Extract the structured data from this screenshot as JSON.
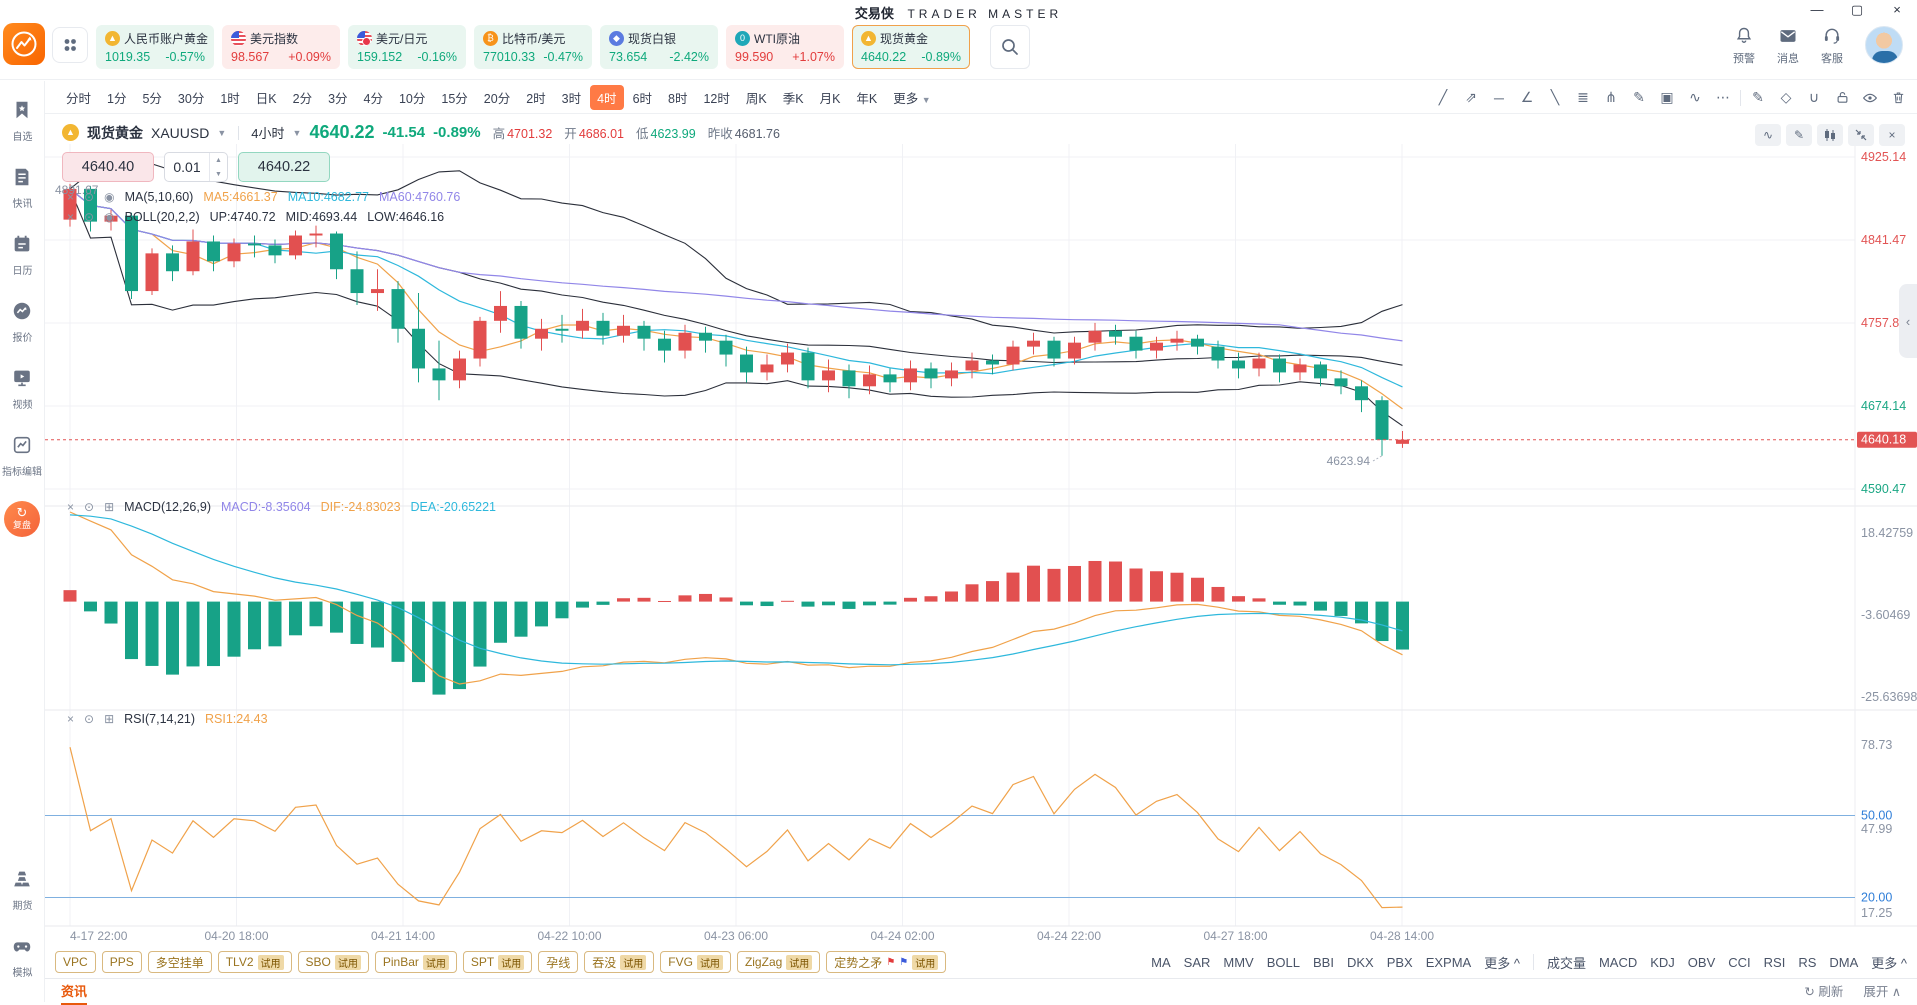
{
  "window": {
    "title_cn": "交易侠",
    "title_en": "TRADER MASTER",
    "controls": {
      "minimize": "—",
      "restore": "▢",
      "close": "×"
    }
  },
  "topbar": {
    "tickers": [
      {
        "name": "人民币账户黄金",
        "value": "1019.35",
        "change": "-0.57%",
        "trend": "down",
        "icon": "gold-coin-icon",
        "icon_bg": "#f2b632",
        "glyph": "▲",
        "selected": false
      },
      {
        "name": "美元指数",
        "value": "98.567",
        "change": "+0.09%",
        "trend": "up",
        "icon": "us-flag-icon",
        "icon_bg": "flag",
        "glyph": "",
        "selected": false
      },
      {
        "name": "美元/日元",
        "value": "159.152",
        "change": "-0.16%",
        "trend": "down",
        "icon": "usd-jpy-flag-icon",
        "icon_bg": "flag-jp",
        "glyph": "",
        "selected": false
      },
      {
        "name": "比特币/美元",
        "value": "77010.33",
        "change": "-0.47%",
        "trend": "down",
        "icon": "bitcoin-icon",
        "icon_bg": "#f7931a",
        "glyph": "₿",
        "selected": false
      },
      {
        "name": "现货白银",
        "value": "73.654",
        "change": "-2.42%",
        "trend": "down",
        "icon": "silver-icon",
        "icon_bg": "#5b7be0",
        "glyph": "◆",
        "selected": false
      },
      {
        "name": "WTI原油",
        "value": "99.590",
        "change": "+1.07%",
        "trend": "up",
        "icon": "oil-icon",
        "icon_bg": "#1fa7b8",
        "glyph": "0",
        "selected": false
      },
      {
        "name": "现货黄金",
        "value": "4640.22",
        "change": "-0.89%",
        "trend": "down",
        "icon": "gold-coin-icon",
        "icon_bg": "#f2b632",
        "glyph": "▲",
        "selected": true
      }
    ],
    "actions": [
      {
        "label": "预警",
        "icon": "bell-icon"
      },
      {
        "label": "消息",
        "icon": "mail-icon"
      },
      {
        "label": "客服",
        "icon": "headset-icon"
      }
    ]
  },
  "sidebar": {
    "items": [
      {
        "label": "自选",
        "icon": "bookmark-icon"
      },
      {
        "label": "快讯",
        "icon": "news-icon"
      },
      {
        "label": "日历",
        "icon": "calendar-icon"
      },
      {
        "label": "报价",
        "icon": "quotes-icon"
      },
      {
        "label": "视频",
        "icon": "video-icon"
      },
      {
        "label": "指标编辑",
        "icon": "indicator-edit-icon"
      }
    ],
    "replay": "复盘",
    "bottom_items": [
      {
        "label": "期货",
        "icon": "futures-icon"
      },
      {
        "label": "模拟",
        "icon": "simulate-icon"
      }
    ]
  },
  "timeframes": {
    "items": [
      "分时",
      "1分",
      "5分",
      "30分",
      "1时",
      "日K",
      "2分",
      "3分",
      "4分",
      "10分",
      "15分",
      "20分",
      "2时",
      "3时",
      "4时",
      "6时",
      "8时",
      "12时",
      "周K",
      "季K",
      "月K",
      "年K"
    ],
    "active": "4时",
    "more": "更多"
  },
  "draw_tools": [
    "trend-line-icon",
    "ray-icon",
    "horizontal-line-icon",
    "polyline-icon",
    "segment-icon",
    "fibonacci-icon",
    "fan-lines-icon",
    "brush-icon",
    "image-icon",
    "pattern-icon",
    "more-tools-icon",
    "note-icon",
    "eraser-icon",
    "magnet-icon",
    "lock-icon",
    "visibility-icon",
    "delete-icon"
  ],
  "chart": {
    "header": {
      "name": "现货黄金",
      "symbol": "XAUUSD",
      "interval": "4小时",
      "price": "4640.22",
      "change": "-41.54",
      "change_pct": "-0.89%",
      "high_label": "高",
      "high": "4701.32",
      "open_label": "开",
      "open": "4686.01",
      "low_label": "低",
      "low": "4623.99",
      "prev_label": "昨收",
      "prev_close": "4681.76"
    },
    "order": {
      "sell": "4640.40",
      "qty": "0.01",
      "buy": "4640.22"
    },
    "ma_legend": {
      "title": "MA(5,10,60)",
      "ma5": "MA5:4661.37",
      "ma10": "MA10:4682.77",
      "ma60": "MA60:4760.76"
    },
    "boll_legend": {
      "title": "BOLL(20,2,2)",
      "up": "UP:4740.72",
      "mid": "MID:4693.44",
      "low": "LOW:4646.16"
    },
    "macd_legend": {
      "title": "MACD(12,26,9)",
      "macd": "MACD:-8.35604",
      "dif": "DIF:-24.83023",
      "dea": "DEA:-20.65221"
    },
    "rsi_legend": {
      "title": "RSI(7,14,21)",
      "rsi1": "RSI1:24.43"
    },
    "high_marker": "4891.67",
    "low_marker": "4623.94",
    "current_price": "4640.18",
    "price_axis": [
      {
        "label": "4925.14",
        "color": "#e25454"
      },
      {
        "label": "4841.47",
        "color": "#e25454"
      },
      {
        "label": "4757.80",
        "color": "#e25454"
      },
      {
        "label": "4674.14",
        "color": "#1ba784"
      },
      {
        "label": "4590.47",
        "color": "#1ba784"
      }
    ],
    "macd_axis": [
      "18.42759",
      "-3.60469",
      "-25.63698"
    ],
    "rsi_axis_gray": [
      "78.73",
      "47.99",
      "17.25"
    ],
    "rsi_lines": [
      {
        "value": 50,
        "label": "50.00"
      },
      {
        "value": 20,
        "label": "20.00"
      }
    ]
  },
  "chart_data": {
    "type": "candlestick",
    "symbol": "XAUUSD",
    "interval": "4h",
    "x_labels": [
      "4-17 22:00",
      "04-20 18:00",
      "04-21 14:00",
      "04-22 10:00",
      "04-23 06:00",
      "04-24 02:00",
      "04-24 22:00",
      "04-27 18:00",
      "04-28 14:00"
    ],
    "price_range": [
      4590.47,
      4925.14
    ],
    "overlays": [
      "MA5",
      "MA10",
      "MA60",
      "BOLL(20,2)"
    ],
    "sub_panels": [
      "MACD(12,26,9)",
      "RSI(7)"
    ],
    "up_color": "#e25050",
    "down_color": "#17a287",
    "ohlc": [
      [
        4862,
        4898,
        4855,
        4893
      ],
      [
        4893,
        4896,
        4850,
        4860
      ],
      [
        4860,
        4872,
        4851,
        4866
      ],
      [
        4866,
        4869,
        4782,
        4790
      ],
      [
        4790,
        4833,
        4786,
        4828
      ],
      [
        4828,
        4836,
        4800,
        4810
      ],
      [
        4810,
        4852,
        4806,
        4840
      ],
      [
        4840,
        4846,
        4810,
        4820
      ],
      [
        4820,
        4843,
        4814,
        4838
      ],
      [
        4838,
        4846,
        4824,
        4836
      ],
      [
        4836,
        4842,
        4818,
        4826
      ],
      [
        4826,
        4851,
        4822,
        4846
      ],
      [
        4846,
        4856,
        4834,
        4848
      ],
      [
        4848,
        4850,
        4802,
        4812
      ],
      [
        4812,
        4830,
        4776,
        4788
      ],
      [
        4788,
        4812,
        4770,
        4792
      ],
      [
        4792,
        4800,
        4738,
        4752
      ],
      [
        4752,
        4788,
        4698,
        4712
      ],
      [
        4712,
        4740,
        4680,
        4700
      ],
      [
        4700,
        4730,
        4692,
        4722
      ],
      [
        4722,
        4764,
        4714,
        4760
      ],
      [
        4760,
        4790,
        4748,
        4775
      ],
      [
        4775,
        4780,
        4732,
        4742
      ],
      [
        4742,
        4762,
        4730,
        4752
      ],
      [
        4752,
        4766,
        4738,
        4750
      ],
      [
        4750,
        4772,
        4742,
        4760
      ],
      [
        4760,
        4768,
        4736,
        4745
      ],
      [
        4745,
        4766,
        4738,
        4755
      ],
      [
        4755,
        4760,
        4730,
        4742
      ],
      [
        4742,
        4750,
        4718,
        4730
      ],
      [
        4730,
        4756,
        4722,
        4748
      ],
      [
        4748,
        4754,
        4728,
        4740
      ],
      [
        4740,
        4746,
        4714,
        4726
      ],
      [
        4726,
        4734,
        4698,
        4708
      ],
      [
        4708,
        4726,
        4700,
        4716
      ],
      [
        4716,
        4737,
        4708,
        4728
      ],
      [
        4728,
        4733,
        4692,
        4700
      ],
      [
        4700,
        4721,
        4688,
        4710
      ],
      [
        4710,
        4716,
        4682,
        4694
      ],
      [
        4694,
        4715,
        4686,
        4706
      ],
      [
        4706,
        4712,
        4688,
        4698
      ],
      [
        4698,
        4720,
        4690,
        4712
      ],
      [
        4712,
        4718,
        4692,
        4702
      ],
      [
        4702,
        4718,
        4694,
        4710
      ],
      [
        4710,
        4728,
        4702,
        4720
      ],
      [
        4720,
        4726,
        4706,
        4716
      ],
      [
        4716,
        4740,
        4710,
        4734
      ],
      [
        4734,
        4748,
        4726,
        4740
      ],
      [
        4740,
        4744,
        4714,
        4722
      ],
      [
        4722,
        4744,
        4716,
        4738
      ],
      [
        4738,
        4758,
        4730,
        4750
      ],
      [
        4750,
        4756,
        4736,
        4744
      ],
      [
        4744,
        4750,
        4722,
        4730
      ],
      [
        4730,
        4744,
        4722,
        4738
      ],
      [
        4738,
        4750,
        4730,
        4742
      ],
      [
        4742,
        4746,
        4726,
        4734
      ],
      [
        4734,
        4740,
        4712,
        4720
      ],
      [
        4720,
        4728,
        4702,
        4712
      ],
      [
        4712,
        4728,
        4704,
        4722
      ],
      [
        4722,
        4726,
        4698,
        4708
      ],
      [
        4708,
        4722,
        4700,
        4716
      ],
      [
        4716,
        4719,
        4694,
        4702
      ],
      [
        4702,
        4710,
        4686,
        4694
      ],
      [
        4694,
        4700,
        4668,
        4680
      ],
      [
        4680,
        4684,
        4623.94,
        4640
      ],
      [
        4636,
        4649,
        4632,
        4640.22
      ]
    ]
  },
  "bottom_toolbar": {
    "trial_badge": "试用",
    "strategies": [
      {
        "label": "VPC",
        "trial": false,
        "flags": false
      },
      {
        "label": "PPS",
        "trial": false,
        "flags": false
      },
      {
        "label": "多空挂单",
        "trial": false,
        "flags": false
      },
      {
        "label": "TLV2",
        "trial": true,
        "flags": false
      },
      {
        "label": "SBO",
        "trial": true,
        "flags": false
      },
      {
        "label": "PinBar",
        "trial": true,
        "flags": false
      },
      {
        "label": "SPT",
        "trial": true,
        "flags": false
      },
      {
        "label": "孕线",
        "trial": false,
        "flags": false
      },
      {
        "label": "吞没",
        "trial": true,
        "flags": false
      },
      {
        "label": "FVG",
        "trial": true,
        "flags": false
      },
      {
        "label": "ZigZag",
        "trial": true,
        "flags": false
      },
      {
        "label": "定势之矛",
        "trial": true,
        "flags": true
      }
    ],
    "overlay_indicators": [
      "MA",
      "SAR",
      "MMV",
      "BOLL",
      "BBI",
      "DKX",
      "PBX",
      "EXPMA"
    ],
    "overlay_more": "更多 ^",
    "sub_indicators": [
      "成交量",
      "MACD",
      "KDJ",
      "OBV",
      "CCI",
      "RSI",
      "RS",
      "DMA"
    ],
    "sub_more": "更多 ^"
  },
  "statusbar": {
    "tab": "资讯",
    "refresh": "刷新",
    "expand": "展开"
  }
}
